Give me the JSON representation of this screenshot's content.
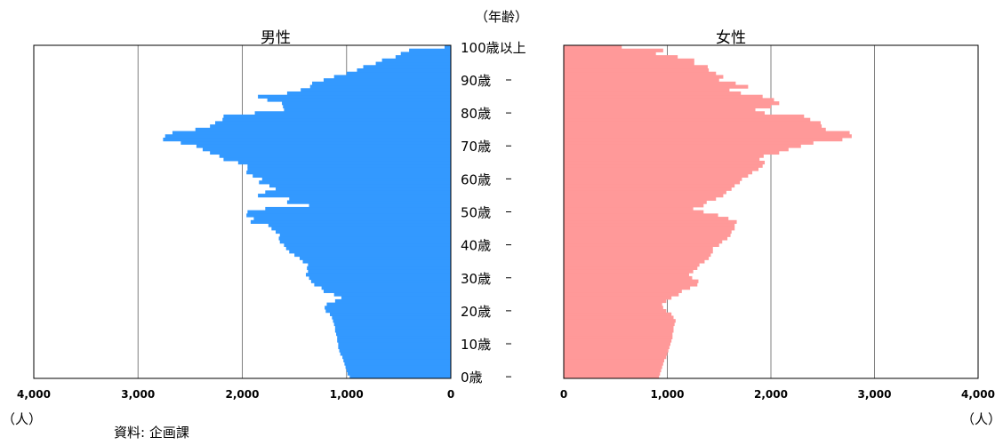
{
  "chart_data": {
    "type": "bar",
    "orientation": "horizontal",
    "unit_label": "（人）",
    "age_axis_title": "（年齢）",
    "source": "資料: 企画課",
    "age_labels": [
      "0歳",
      "10歳",
      "20歳",
      "30歳",
      "40歳",
      "50歳",
      "60歳",
      "70歳",
      "80歳",
      "90歳",
      "100歳以上"
    ],
    "x_ticks": [
      0,
      1000,
      2000,
      3000,
      4000
    ],
    "x_tick_labels": [
      "0",
      "1,000",
      "2,000",
      "3,000",
      "4,000"
    ],
    "xlim": [
      0,
      4000
    ],
    "grid": true,
    "series": [
      {
        "name": "男性",
        "color": "#3399FF",
        "side": "left",
        "values": [
          970,
          990,
          1000,
          1010,
          1020,
          1030,
          1040,
          1060,
          1070,
          1080,
          1080,
          1090,
          1090,
          1100,
          1110,
          1110,
          1120,
          1130,
          1140,
          1160,
          1200,
          1210,
          1190,
          1110,
          1050,
          1120,
          1220,
          1240,
          1310,
          1340,
          1360,
          1390,
          1370,
          1380,
          1370,
          1420,
          1450,
          1500,
          1550,
          1580,
          1600,
          1640,
          1650,
          1640,
          1680,
          1720,
          1750,
          1920,
          1890,
          1960,
          1950,
          1780,
          1360,
          1570,
          1550,
          1850,
          1780,
          1680,
          1740,
          1840,
          1810,
          1900,
          1960,
          1950,
          1950,
          2040,
          2180,
          2220,
          2310,
          2380,
          2440,
          2590,
          2760,
          2740,
          2670,
          2450,
          2310,
          2260,
          2190,
          2180,
          1880,
          1600,
          1610,
          1620,
          1760,
          1850,
          1570,
          1440,
          1350,
          1330,
          1220,
          1120,
          1000,
          900,
          840,
          720,
          660,
          530,
          480,
          400,
          60
        ]
      },
      {
        "name": "女性",
        "color": "#FF9999",
        "side": "right",
        "values": [
          920,
          930,
          940,
          950,
          960,
          970,
          990,
          1000,
          1010,
          1020,
          1030,
          1040,
          1050,
          1050,
          1060,
          1060,
          1070,
          1080,
          1060,
          1040,
          990,
          960,
          950,
          990,
          1040,
          1110,
          1140,
          1220,
          1290,
          1300,
          1240,
          1210,
          1250,
          1290,
          1310,
          1360,
          1400,
          1420,
          1440,
          1440,
          1500,
          1530,
          1580,
          1610,
          1620,
          1650,
          1650,
          1670,
          1590,
          1490,
          1350,
          1250,
          1350,
          1380,
          1470,
          1540,
          1570,
          1620,
          1650,
          1700,
          1720,
          1780,
          1820,
          1880,
          1920,
          1940,
          1890,
          1930,
          2080,
          2170,
          2290,
          2410,
          2690,
          2780,
          2760,
          2530,
          2490,
          2480,
          2380,
          2320,
          1940,
          1850,
          2000,
          2080,
          2030,
          1920,
          1710,
          1600,
          1780,
          1660,
          1500,
          1540,
          1470,
          1400,
          1390,
          1260,
          1260,
          1100,
          890,
          960,
          560
        ]
      }
    ]
  }
}
